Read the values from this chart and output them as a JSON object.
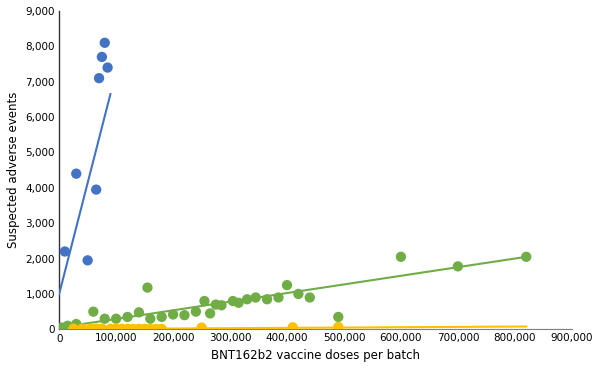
{
  "blue_x": [
    10000,
    30000,
    50000,
    65000,
    70000,
    75000,
    80000,
    85000
  ],
  "blue_y": [
    2200,
    4400,
    1950,
    3950,
    7100,
    7700,
    8100,
    7400
  ],
  "green_x": [
    5000,
    15000,
    30000,
    60000,
    80000,
    100000,
    120000,
    140000,
    155000,
    160000,
    180000,
    200000,
    220000,
    240000,
    255000,
    265000,
    275000,
    285000,
    305000,
    315000,
    330000,
    345000,
    365000,
    385000,
    400000,
    420000,
    440000,
    490000,
    600000,
    700000,
    820000
  ],
  "green_y": [
    50,
    100,
    150,
    500,
    300,
    300,
    350,
    480,
    1180,
    300,
    350,
    420,
    400,
    500,
    800,
    450,
    700,
    680,
    800,
    750,
    850,
    900,
    850,
    900,
    1250,
    1000,
    900,
    350,
    2050,
    1780,
    2050
  ],
  "orange_x": [
    25000,
    40000,
    55000,
    65000,
    75000,
    90000,
    100000,
    110000,
    120000,
    130000,
    140000,
    150000,
    160000,
    170000,
    180000,
    250000,
    410000,
    490000
  ],
  "orange_y": [
    20,
    20,
    20,
    20,
    20,
    15,
    20,
    15,
    15,
    10,
    15,
    15,
    15,
    10,
    15,
    50,
    60,
    70
  ],
  "blue_line_x": [
    0,
    90000
  ],
  "blue_line_y": [
    1000,
    6650
  ],
  "green_line_x": [
    0,
    820000
  ],
  "green_line_y": [
    50,
    2050
  ],
  "orange_line_x": [
    0,
    820000
  ],
  "orange_line_y": [
    5,
    80
  ],
  "xlabel": "BNT162b2 vaccine doses per batch",
  "ylabel": "Suspected adverse events",
  "ylim": [
    0,
    9000
  ],
  "xlim": [
    0,
    900000
  ],
  "yticks": [
    0,
    1000,
    2000,
    3000,
    4000,
    5000,
    6000,
    7000,
    8000,
    9000
  ],
  "xticks": [
    0,
    100000,
    200000,
    300000,
    400000,
    500000,
    600000,
    700000,
    800000,
    900000
  ],
  "blue_color": "#4472C4",
  "green_color": "#70AD47",
  "orange_color": "#FFC000",
  "bg_color": "#FFFFFF",
  "spine_color": "#333333",
  "axis_line_color": "#808080"
}
